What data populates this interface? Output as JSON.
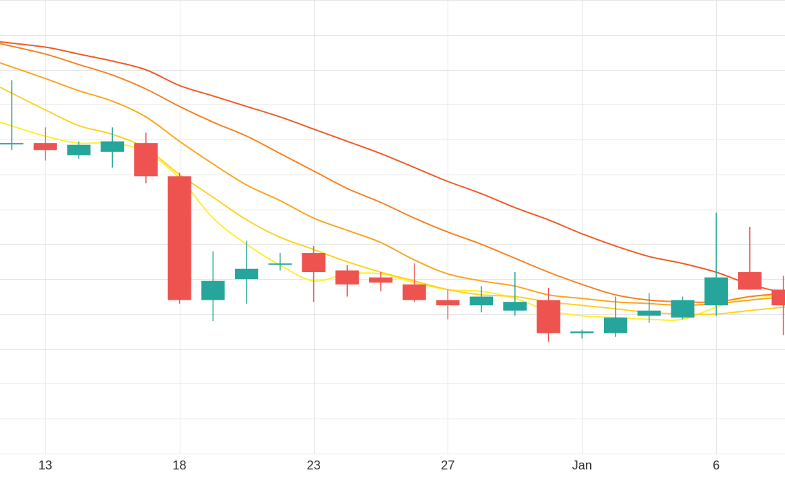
{
  "chart_data": {
    "type": "candlestick",
    "title": "",
    "xlabel": "",
    "ylabel": "",
    "grid": true,
    "legend": "none",
    "x_ticks": [
      {
        "index": 1,
        "label": "13"
      },
      {
        "index": 5,
        "label": "18"
      },
      {
        "index": 9,
        "label": "23"
      },
      {
        "index": 13,
        "label": "27"
      },
      {
        "index": 17,
        "label": "Jan"
      },
      {
        "index": 21,
        "label": "6"
      }
    ],
    "x_range": [
      -0.35,
      23.05
    ],
    "y_range": [
      0,
      13
    ],
    "up_color": "#26a69a",
    "down_color": "#ef5350",
    "candles": [
      {
        "index": 0,
        "open": 8.9,
        "high": 10.7,
        "low": 8.7,
        "close": 8.9
      },
      {
        "index": 1,
        "open": 8.9,
        "high": 9.35,
        "low": 8.4,
        "close": 8.7
      },
      {
        "index": 2,
        "open": 8.55,
        "high": 8.95,
        "low": 8.45,
        "close": 8.85
      },
      {
        "index": 3,
        "open": 8.65,
        "high": 9.35,
        "low": 8.2,
        "close": 8.95
      },
      {
        "index": 4,
        "open": 8.9,
        "high": 9.2,
        "low": 7.75,
        "close": 7.95
      },
      {
        "index": 5,
        "open": 7.95,
        "high": 8.05,
        "low": 4.3,
        "close": 4.4
      },
      {
        "index": 6,
        "open": 4.4,
        "high": 5.8,
        "low": 3.8,
        "close": 4.95
      },
      {
        "index": 7,
        "open": 5.0,
        "high": 6.1,
        "low": 4.3,
        "close": 5.3
      },
      {
        "index": 8,
        "open": 5.45,
        "high": 5.75,
        "low": 5.25,
        "close": 5.45
      },
      {
        "index": 9,
        "open": 5.75,
        "high": 5.95,
        "low": 4.35,
        "close": 5.2
      },
      {
        "index": 10,
        "open": 5.25,
        "high": 5.4,
        "low": 4.5,
        "close": 4.85
      },
      {
        "index": 11,
        "open": 5.05,
        "high": 5.2,
        "low": 4.65,
        "close": 4.9
      },
      {
        "index": 12,
        "open": 4.85,
        "high": 5.45,
        "low": 4.35,
        "close": 4.4
      },
      {
        "index": 13,
        "open": 4.4,
        "high": 4.7,
        "low": 3.85,
        "close": 4.25
      },
      {
        "index": 14,
        "open": 4.25,
        "high": 4.8,
        "low": 4.05,
        "close": 4.5
      },
      {
        "index": 15,
        "open": 4.1,
        "high": 5.2,
        "low": 3.95,
        "close": 4.35
      },
      {
        "index": 16,
        "open": 4.4,
        "high": 4.75,
        "low": 3.2,
        "close": 3.45
      },
      {
        "index": 17,
        "open": 3.45,
        "high": 3.55,
        "low": 3.3,
        "close": 3.5
      },
      {
        "index": 18,
        "open": 3.45,
        "high": 4.5,
        "low": 3.35,
        "close": 3.9
      },
      {
        "index": 19,
        "open": 3.95,
        "high": 4.6,
        "low": 3.75,
        "close": 4.1
      },
      {
        "index": 20,
        "open": 3.9,
        "high": 4.5,
        "low": 3.85,
        "close": 4.4
      },
      {
        "index": 21,
        "open": 4.25,
        "high": 6.9,
        "low": 3.95,
        "close": 5.05
      },
      {
        "index": 22,
        "open": 5.2,
        "high": 6.5,
        "low": 4.7,
        "close": 4.7
      },
      {
        "index": 23,
        "open": 4.7,
        "high": 5.1,
        "low": 3.4,
        "close": 4.25
      }
    ],
    "moving_averages": [
      {
        "color": "#ffee33",
        "values": [
          {
            "index": -0.35,
            "value": 9.5
          },
          {
            "index": 1,
            "value": 9.1
          },
          {
            "index": 2,
            "value": 8.9
          },
          {
            "index": 3,
            "value": 8.9
          },
          {
            "index": 4,
            "value": 8.65
          },
          {
            "index": 5,
            "value": 7.9
          },
          {
            "index": 6,
            "value": 6.75
          },
          {
            "index": 7,
            "value": 6.0
          },
          {
            "index": 8,
            "value": 5.4
          },
          {
            "index": 9,
            "value": 4.95
          },
          {
            "index": 10,
            "value": 5.15
          },
          {
            "index": 11,
            "value": 5.15
          },
          {
            "index": 12,
            "value": 4.9
          },
          {
            "index": 13,
            "value": 4.7
          },
          {
            "index": 14,
            "value": 4.65
          },
          {
            "index": 15,
            "value": 4.45
          },
          {
            "index": 16,
            "value": 4.1
          },
          {
            "index": 17,
            "value": 3.95
          },
          {
            "index": 18,
            "value": 3.9
          },
          {
            "index": 19,
            "value": 3.85
          },
          {
            "index": 20,
            "value": 3.85
          },
          {
            "index": 21,
            "value": 4.2
          },
          {
            "index": 22,
            "value": 4.5
          },
          {
            "index": 23.05,
            "value": 4.5
          }
        ]
      },
      {
        "color": "#ffd21f",
        "values": [
          {
            "index": -0.35,
            "value": 10.5
          },
          {
            "index": 1,
            "value": 9.85
          },
          {
            "index": 2,
            "value": 9.4
          },
          {
            "index": 3,
            "value": 9.15
          },
          {
            "index": 4,
            "value": 8.75
          },
          {
            "index": 5,
            "value": 8.0
          },
          {
            "index": 6,
            "value": 7.35
          },
          {
            "index": 7,
            "value": 6.7
          },
          {
            "index": 8,
            "value": 6.2
          },
          {
            "index": 9,
            "value": 5.85
          },
          {
            "index": 10,
            "value": 5.5
          },
          {
            "index": 11,
            "value": 5.2
          },
          {
            "index": 12,
            "value": 4.95
          },
          {
            "index": 13,
            "value": 4.7
          },
          {
            "index": 14,
            "value": 4.55
          },
          {
            "index": 15,
            "value": 4.5
          },
          {
            "index": 16,
            "value": 4.35
          },
          {
            "index": 17,
            "value": 4.25
          },
          {
            "index": 18,
            "value": 4.15
          },
          {
            "index": 19,
            "value": 4.05
          },
          {
            "index": 20,
            "value": 4.0
          },
          {
            "index": 21,
            "value": 4.0
          },
          {
            "index": 22,
            "value": 4.1
          },
          {
            "index": 23.05,
            "value": 4.2
          }
        ]
      },
      {
        "color": "#fba51e",
        "values": [
          {
            "index": -0.35,
            "value": 11.2
          },
          {
            "index": 1,
            "value": 10.75
          },
          {
            "index": 2,
            "value": 10.4
          },
          {
            "index": 3,
            "value": 10.1
          },
          {
            "index": 4,
            "value": 9.65
          },
          {
            "index": 5,
            "value": 8.95
          },
          {
            "index": 6,
            "value": 8.3
          },
          {
            "index": 7,
            "value": 7.7
          },
          {
            "index": 8,
            "value": 7.25
          },
          {
            "index": 9,
            "value": 6.75
          },
          {
            "index": 10,
            "value": 6.4
          },
          {
            "index": 11,
            "value": 6.05
          },
          {
            "index": 12,
            "value": 5.55
          },
          {
            "index": 13,
            "value": 5.15
          },
          {
            "index": 14,
            "value": 4.95
          },
          {
            "index": 15,
            "value": 4.8
          },
          {
            "index": 16,
            "value": 4.55
          },
          {
            "index": 17,
            "value": 4.45
          },
          {
            "index": 18,
            "value": 4.35
          },
          {
            "index": 19,
            "value": 4.3
          },
          {
            "index": 20,
            "value": 4.25
          },
          {
            "index": 21,
            "value": 4.3
          },
          {
            "index": 22,
            "value": 4.4
          },
          {
            "index": 23.05,
            "value": 4.5
          }
        ]
      },
      {
        "color": "#f78125",
        "values": [
          {
            "index": -0.35,
            "value": 11.75
          },
          {
            "index": 1,
            "value": 11.45
          },
          {
            "index": 2,
            "value": 11.15
          },
          {
            "index": 3,
            "value": 10.85
          },
          {
            "index": 4,
            "value": 10.45
          },
          {
            "index": 5,
            "value": 9.95
          },
          {
            "index": 6,
            "value": 9.5
          },
          {
            "index": 7,
            "value": 9.1
          },
          {
            "index": 8,
            "value": 8.6
          },
          {
            "index": 9,
            "value": 8.1
          },
          {
            "index": 10,
            "value": 7.6
          },
          {
            "index": 11,
            "value": 7.2
          },
          {
            "index": 12,
            "value": 6.75
          },
          {
            "index": 13,
            "value": 6.35
          },
          {
            "index": 14,
            "value": 6.0
          },
          {
            "index": 15,
            "value": 5.6
          },
          {
            "index": 16,
            "value": 5.2
          },
          {
            "index": 17,
            "value": 4.85
          },
          {
            "index": 18,
            "value": 4.55
          },
          {
            "index": 19,
            "value": 4.4
          },
          {
            "index": 20,
            "value": 4.35
          },
          {
            "index": 21,
            "value": 4.35
          },
          {
            "index": 22,
            "value": 4.5
          },
          {
            "index": 23.05,
            "value": 4.6
          }
        ]
      },
      {
        "color": "#f05a24",
        "values": [
          {
            "index": -0.35,
            "value": 11.8
          },
          {
            "index": 1,
            "value": 11.65
          },
          {
            "index": 2,
            "value": 11.45
          },
          {
            "index": 3,
            "value": 11.25
          },
          {
            "index": 4,
            "value": 11.0
          },
          {
            "index": 5,
            "value": 10.55
          },
          {
            "index": 6,
            "value": 10.25
          },
          {
            "index": 7,
            "value": 9.95
          },
          {
            "index": 8,
            "value": 9.65
          },
          {
            "index": 9,
            "value": 9.3
          },
          {
            "index": 10,
            "value": 8.95
          },
          {
            "index": 11,
            "value": 8.6
          },
          {
            "index": 12,
            "value": 8.2
          },
          {
            "index": 13,
            "value": 7.8
          },
          {
            "index": 14,
            "value": 7.45
          },
          {
            "index": 15,
            "value": 7.05
          },
          {
            "index": 16,
            "value": 6.7
          },
          {
            "index": 17,
            "value": 6.3
          },
          {
            "index": 18,
            "value": 5.95
          },
          {
            "index": 19,
            "value": 5.65
          },
          {
            "index": 20,
            "value": 5.45
          },
          {
            "index": 21,
            "value": 5.2
          },
          {
            "index": 22,
            "value": 4.85
          },
          {
            "index": 23.05,
            "value": 4.6
          }
        ]
      }
    ]
  }
}
